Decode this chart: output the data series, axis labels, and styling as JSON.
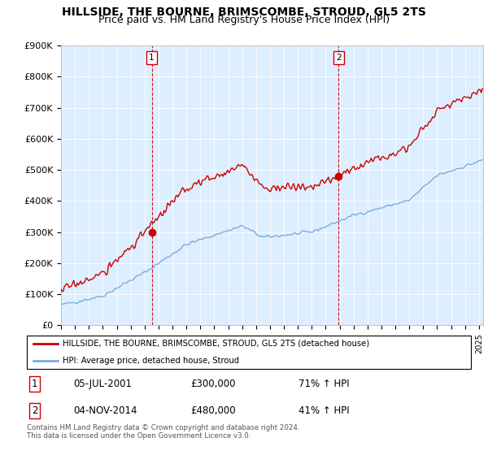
{
  "title": "HILLSIDE, THE BOURNE, BRIMSCOMBE, STROUD, GL5 2TS",
  "subtitle": "Price paid vs. HM Land Registry's House Price Index (HPI)",
  "ylabel_ticks": [
    "£0",
    "£100K",
    "£200K",
    "£300K",
    "£400K",
    "£500K",
    "£600K",
    "£700K",
    "£800K",
    "£900K"
  ],
  "ylim": [
    0,
    900000
  ],
  "xlim_start": 1995.0,
  "xlim_end": 2025.3,
  "red_color": "#cc0000",
  "blue_color": "#7aade0",
  "marker_color": "#cc0000",
  "bg_color": "#ddeeff",
  "sale1_x": 2001.51,
  "sale1_y": 300000,
  "sale2_x": 2014.92,
  "sale2_y": 480000,
  "legend_line1": "HILLSIDE, THE BOURNE, BRIMSCOMBE, STROUD, GL5 2TS (detached house)",
  "legend_line2": "HPI: Average price, detached house, Stroud",
  "table_row1": [
    "1",
    "05-JUL-2001",
    "£300,000",
    "71% ↑ HPI"
  ],
  "table_row2": [
    "2",
    "04-NOV-2014",
    "£480,000",
    "41% ↑ HPI"
  ],
  "footer": "Contains HM Land Registry data © Crown copyright and database right 2024.\nThis data is licensed under the Open Government Licence v3.0.",
  "title_fontsize": 10,
  "subtitle_fontsize": 9
}
